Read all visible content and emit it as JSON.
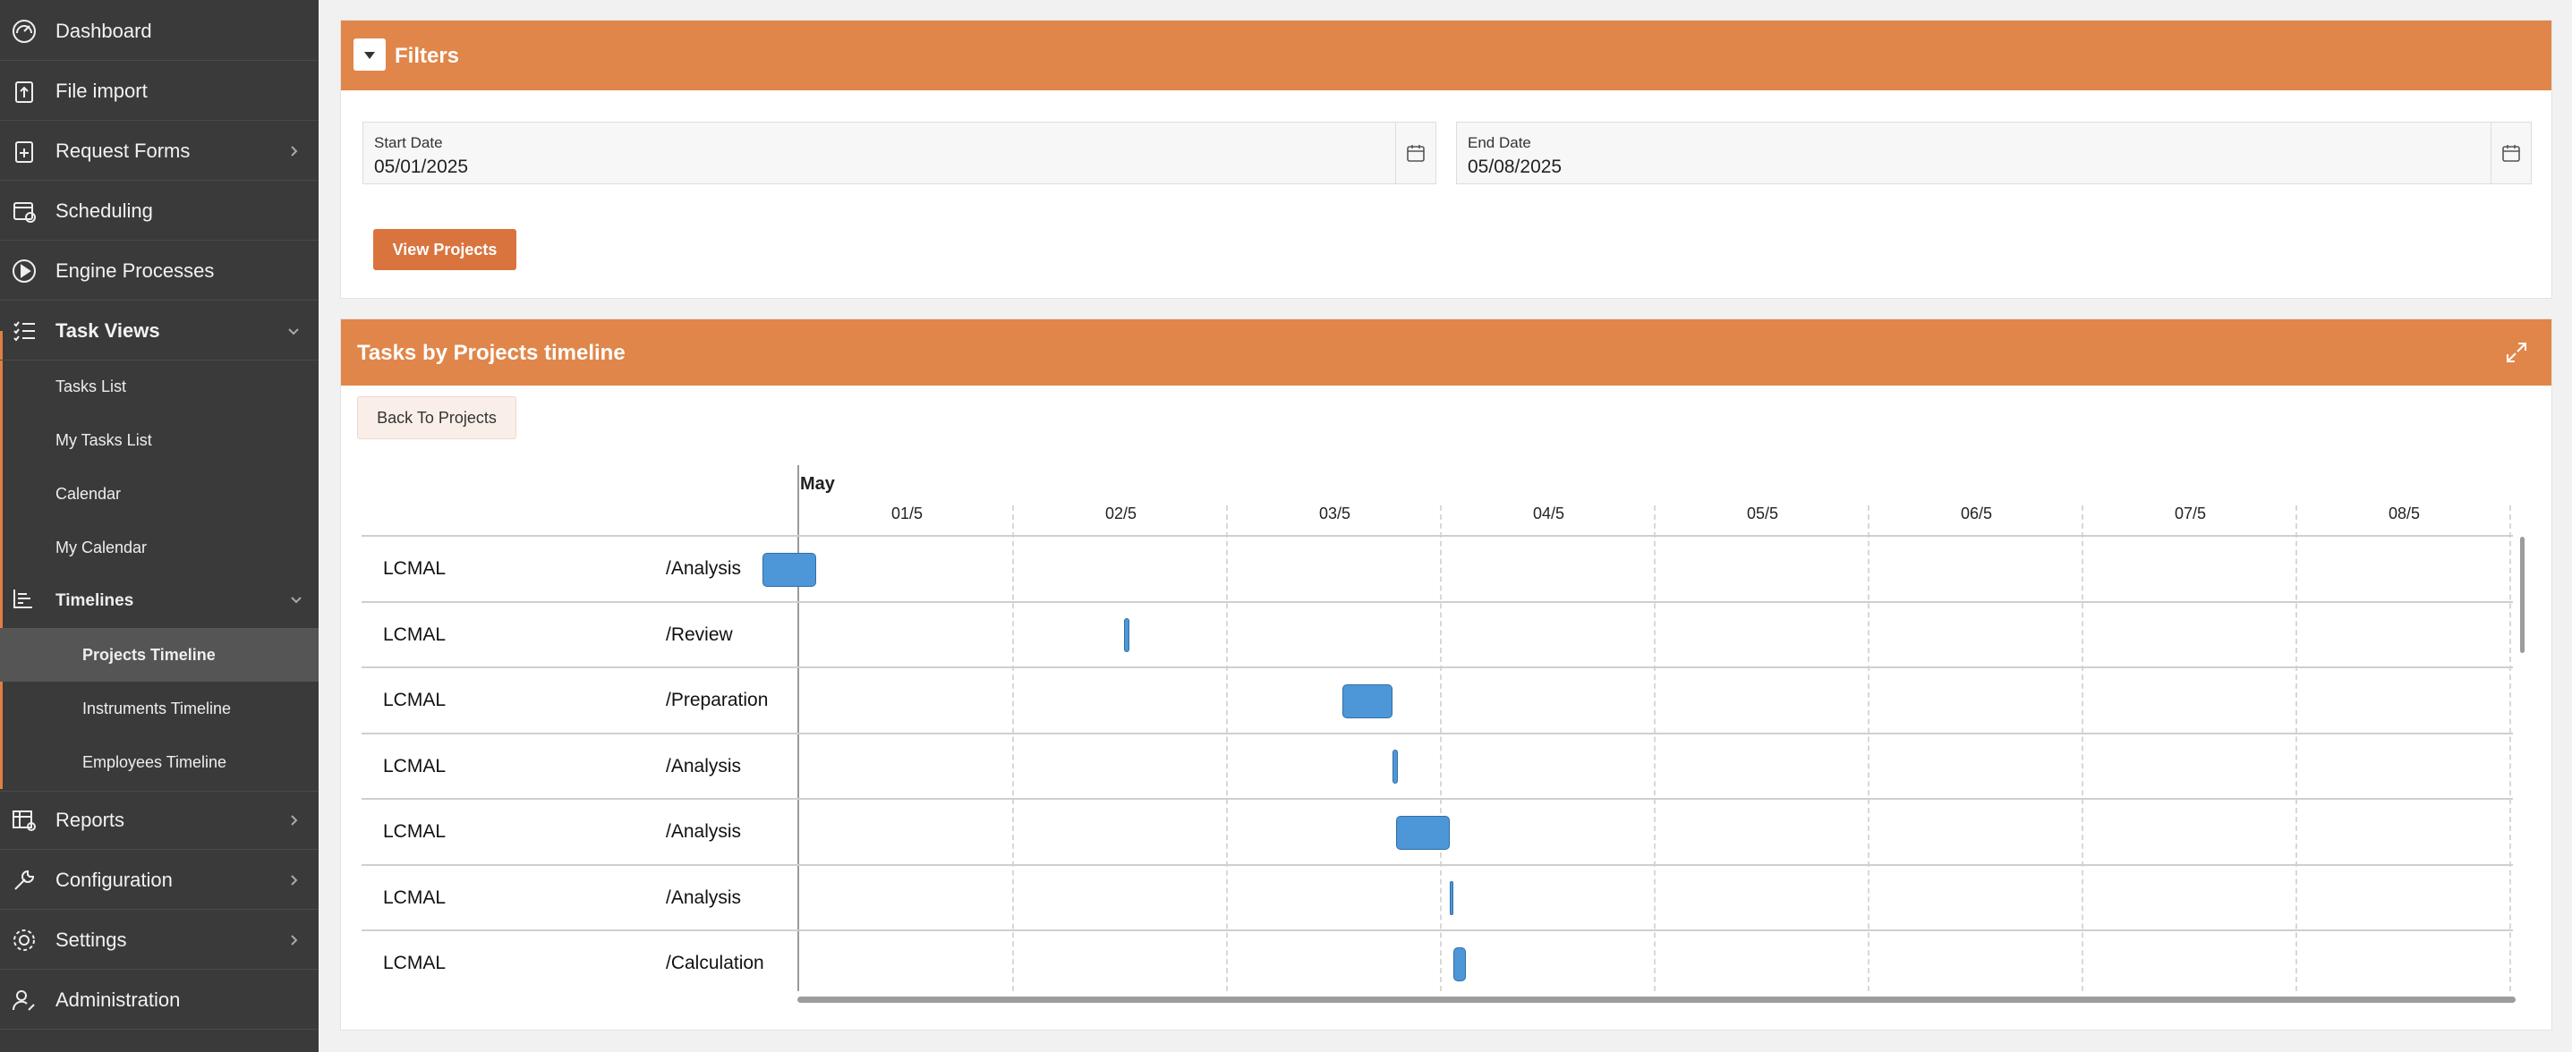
{
  "sidebar": {
    "items": [
      {
        "label": "Dashboard",
        "icon": "dashboard-icon"
      },
      {
        "label": "File import",
        "icon": "file-import-icon"
      },
      {
        "label": "Request Forms",
        "icon": "request-forms-icon"
      },
      {
        "label": "Scheduling",
        "icon": "scheduling-icon"
      },
      {
        "label": "Engine Processes",
        "icon": "play-icon"
      },
      {
        "label": "Task Views",
        "icon": "task-list-icon"
      },
      {
        "label": "Reports",
        "icon": "reports-icon"
      },
      {
        "label": "Configuration",
        "icon": "wrench-icon"
      },
      {
        "label": "Settings",
        "icon": "gear-icon"
      },
      {
        "label": "Administration",
        "icon": "admin-icon"
      }
    ],
    "task_views_sub": [
      "Tasks List",
      "My Tasks List",
      "Calendar",
      "My Calendar"
    ],
    "timelines": {
      "label": "Timelines",
      "icon": "timeline-icon"
    },
    "timelines_sub": [
      "Projects Timeline",
      "Instruments Timeline",
      "Employees Timeline"
    ]
  },
  "filters": {
    "title": "Filters",
    "start_label": "Start Date",
    "start_value": "05/01/2025",
    "end_label": "End Date",
    "end_value": "05/08/2025",
    "view_button": "View Projects"
  },
  "timeline": {
    "title": "Tasks by Projects timeline",
    "back_button": "Back To Projects",
    "month": "May",
    "days": [
      "01/5",
      "02/5",
      "03/5",
      "04/5",
      "05/5",
      "06/5",
      "07/5",
      "08/5"
    ],
    "rows": [
      {
        "project": "LCMAL",
        "task": "/Analysis"
      },
      {
        "project": "LCMAL",
        "task": "/Review"
      },
      {
        "project": "LCMAL",
        "task": "/Preparation"
      },
      {
        "project": "LCMAL",
        "task": "/Analysis"
      },
      {
        "project": "LCMAL",
        "task": "/Analysis"
      },
      {
        "project": "LCMAL",
        "task": "/Analysis"
      },
      {
        "project": "LCMAL",
        "task": "/Calculation"
      }
    ],
    "bar_color": "#4d97d8"
  },
  "colors": {
    "accent": "#e0864a",
    "sidebar": "#3a3a3a"
  }
}
